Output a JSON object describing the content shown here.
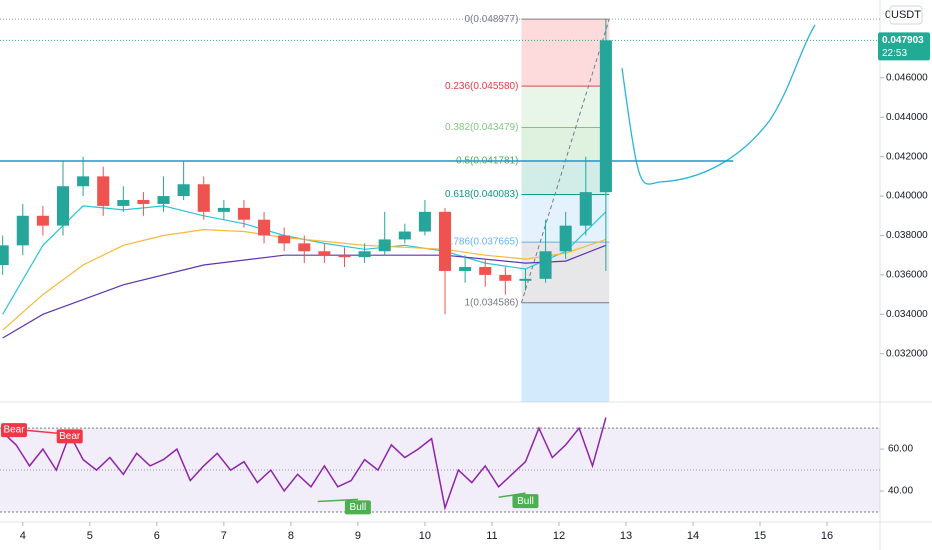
{
  "chart_data": {
    "type": "candlestick",
    "currency": "USDT",
    "top_label": "0",
    "xlim": [
      3.66,
      16.79
    ],
    "xticks": [
      4,
      5,
      6,
      7,
      8,
      9,
      10,
      11,
      12,
      13,
      14,
      15,
      16
    ],
    "x": [
      3.7,
      4.0,
      4.3,
      4.6,
      4.9,
      5.2,
      5.5,
      5.8,
      6.1,
      6.4,
      6.7,
      7.0,
      7.3,
      7.6,
      7.9,
      8.2,
      8.5,
      8.8,
      9.1,
      9.4,
      9.7,
      10.0,
      10.3,
      10.6,
      10.9,
      11.2,
      11.5,
      11.8,
      12.1,
      12.4,
      12.7
    ],
    "open": [
      0.0365,
      0.0375,
      0.039,
      0.0385,
      0.0405,
      0.041,
      0.0395,
      0.0398,
      0.0396,
      0.04,
      0.0406,
      0.0392,
      0.0394,
      0.0388,
      0.038,
      0.0376,
      0.0372,
      0.037,
      0.0369,
      0.0372,
      0.0378,
      0.0382,
      0.0392,
      0.0362,
      0.0364,
      0.036,
      0.0357,
      0.0358,
      0.0372,
      0.0385,
      0.0402
    ],
    "high": [
      0.038,
      0.0396,
      0.0395,
      0.0418,
      0.042,
      0.0415,
      0.0405,
      0.0402,
      0.041,
      0.0418,
      0.041,
      0.0398,
      0.0398,
      0.0392,
      0.0384,
      0.038,
      0.0376,
      0.0374,
      0.0376,
      0.0392,
      0.0386,
      0.0398,
      0.0394,
      0.037,
      0.0368,
      0.0364,
      0.0363,
      0.0388,
      0.0392,
      0.042,
      0.049
    ],
    "low": [
      0.036,
      0.037,
      0.038,
      0.038,
      0.04,
      0.039,
      0.0392,
      0.039,
      0.0392,
      0.0398,
      0.0388,
      0.0388,
      0.0384,
      0.0376,
      0.0372,
      0.0366,
      0.0366,
      0.0364,
      0.0366,
      0.037,
      0.0376,
      0.038,
      0.034,
      0.0356,
      0.0354,
      0.035,
      0.0352,
      0.0356,
      0.0368,
      0.038,
      0.0362
    ],
    "close": [
      0.0375,
      0.039,
      0.0385,
      0.0405,
      0.041,
      0.0395,
      0.0398,
      0.0396,
      0.04,
      0.0406,
      0.0392,
      0.0394,
      0.0388,
      0.038,
      0.0376,
      0.0372,
      0.037,
      0.0369,
      0.0372,
      0.0378,
      0.0382,
      0.0392,
      0.0362,
      0.0364,
      0.036,
      0.0357,
      0.0358,
      0.0372,
      0.0385,
      0.0402,
      0.0479
    ],
    "up_color": "#26a69a",
    "down_color": "#ef5350",
    "ylim": [
      0.02955,
      0.04995
    ],
    "yticks": [
      {
        "value": 0.032,
        "label": "0.032000"
      },
      {
        "value": 0.034,
        "label": "0.034000"
      },
      {
        "value": 0.036,
        "label": "0.036000"
      },
      {
        "value": 0.038,
        "label": "0.038000"
      },
      {
        "value": 0.04,
        "label": "0.040000"
      },
      {
        "value": 0.042,
        "label": "0.042000"
      },
      {
        "value": 0.044,
        "label": "0.044000"
      },
      {
        "value": 0.046,
        "label": "0.046000"
      }
    ],
    "moving_averages": [
      {
        "color": "#26c6da",
        "x": [
          3.7,
          4.3,
          4.9,
          5.5,
          6.1,
          6.7,
          7.3,
          7.9,
          8.5,
          9.1,
          9.7,
          10.3,
          10.9,
          11.5,
          12.1,
          12.7
        ],
        "values": [
          0.034,
          0.0375,
          0.0395,
          0.0393,
          0.0395,
          0.039,
          0.0386,
          0.038,
          0.0376,
          0.0373,
          0.0375,
          0.0372,
          0.0366,
          0.0363,
          0.0372,
          0.0392
        ]
      },
      {
        "color": "#f6b93b",
        "x": [
          3.7,
          4.3,
          4.9,
          5.5,
          6.1,
          6.7,
          7.3,
          7.9,
          8.5,
          9.1,
          9.7,
          10.3,
          10.9,
          11.5,
          12.1,
          12.7
        ],
        "values": [
          0.0332,
          0.035,
          0.0365,
          0.0375,
          0.038,
          0.0383,
          0.0382,
          0.0379,
          0.0377,
          0.0375,
          0.0374,
          0.0373,
          0.037,
          0.0368,
          0.0371,
          0.0378
        ]
      },
      {
        "color": "#5e35b1",
        "x": [
          3.7,
          4.3,
          5.5,
          6.7,
          7.9,
          9.1,
          10.3,
          11.5,
          12.1,
          12.7
        ],
        "values": [
          0.0328,
          0.034,
          0.0355,
          0.0365,
          0.037,
          0.037,
          0.037,
          0.0366,
          0.0367,
          0.0375
        ]
      }
    ],
    "hline": {
      "value": 0.04178,
      "color": "#2196c9",
      "x": [
        3.6,
        14.6
      ]
    },
    "fib": {
      "x": [
        11.44,
        12.75
      ],
      "extension_color": "#90caf9",
      "levels": [
        {
          "value": 0.048977,
          "label": "0(0.048977)",
          "color": "#787b86"
        },
        {
          "value": 0.04558,
          "label": "0.236(0.045580)",
          "color": "#f23645"
        },
        {
          "value": 0.043479,
          "label": "0.382(0.043479)",
          "color": "#81c784"
        },
        {
          "value": 0.041781,
          "label": "0.5(0.041781)",
          "color": "#4caf50"
        },
        {
          "value": 0.040083,
          "label": "0.618(0.040083)",
          "color": "#089981"
        },
        {
          "value": 0.037665,
          "label": "0.786(0.037665)",
          "color": "#64b5f6"
        },
        {
          "value": 0.034586,
          "label": "1(0.034586)",
          "color": "#787b86"
        }
      ]
    },
    "price_label": {
      "value": 0.047903,
      "label": "0.047903",
      "countdown": "22:53",
      "color": "#22ab94"
    },
    "rsi": {
      "color": "#8e24aa",
      "ylim": [
        26.2,
        81.0
      ],
      "yticks": [
        {
          "value": 60,
          "label": "60.00"
        },
        {
          "value": 40,
          "label": "40.00"
        }
      ],
      "bands": [
        30,
        70
      ],
      "mid": 50,
      "x": [
        3.7,
        3.9,
        4.1,
        4.3,
        4.5,
        4.7,
        4.9,
        5.1,
        5.3,
        5.5,
        5.7,
        5.9,
        6.1,
        6.3,
        6.5,
        6.7,
        6.9,
        7.1,
        7.3,
        7.5,
        7.7,
        7.9,
        8.1,
        8.3,
        8.5,
        8.7,
        8.9,
        9.1,
        9.3,
        9.5,
        9.7,
        9.9,
        10.1,
        10.3,
        10.5,
        10.7,
        10.9,
        11.1,
        11.3,
        11.5,
        11.7,
        11.9,
        12.1,
        12.3,
        12.5,
        12.7
      ],
      "values": [
        68,
        62,
        52,
        60,
        50,
        67,
        55,
        50,
        56,
        48,
        58,
        52,
        55,
        60,
        45,
        52,
        58,
        50,
        54,
        44,
        50,
        40,
        48,
        42,
        52,
        42,
        45,
        55,
        50,
        62,
        56,
        60,
        65,
        32,
        50,
        44,
        52,
        42,
        48,
        54,
        70,
        56,
        62,
        70,
        52,
        75
      ],
      "divergences": [
        {
          "color": "#f23645",
          "x": [
            3.7,
            4.7
          ],
          "values": [
            70,
            67
          ],
          "labels": [
            "Bear",
            "Bear"
          ]
        },
        {
          "color": "#4caf50",
          "x": [
            8.4,
            9.0
          ],
          "values": [
            35,
            36
          ],
          "labels": [
            null,
            "Bull"
          ]
        },
        {
          "color": "#4caf50",
          "x": [
            11.1,
            11.5
          ],
          "values": [
            37,
            39
          ],
          "labels": [
            null,
            "Bull"
          ]
        }
      ]
    }
  }
}
